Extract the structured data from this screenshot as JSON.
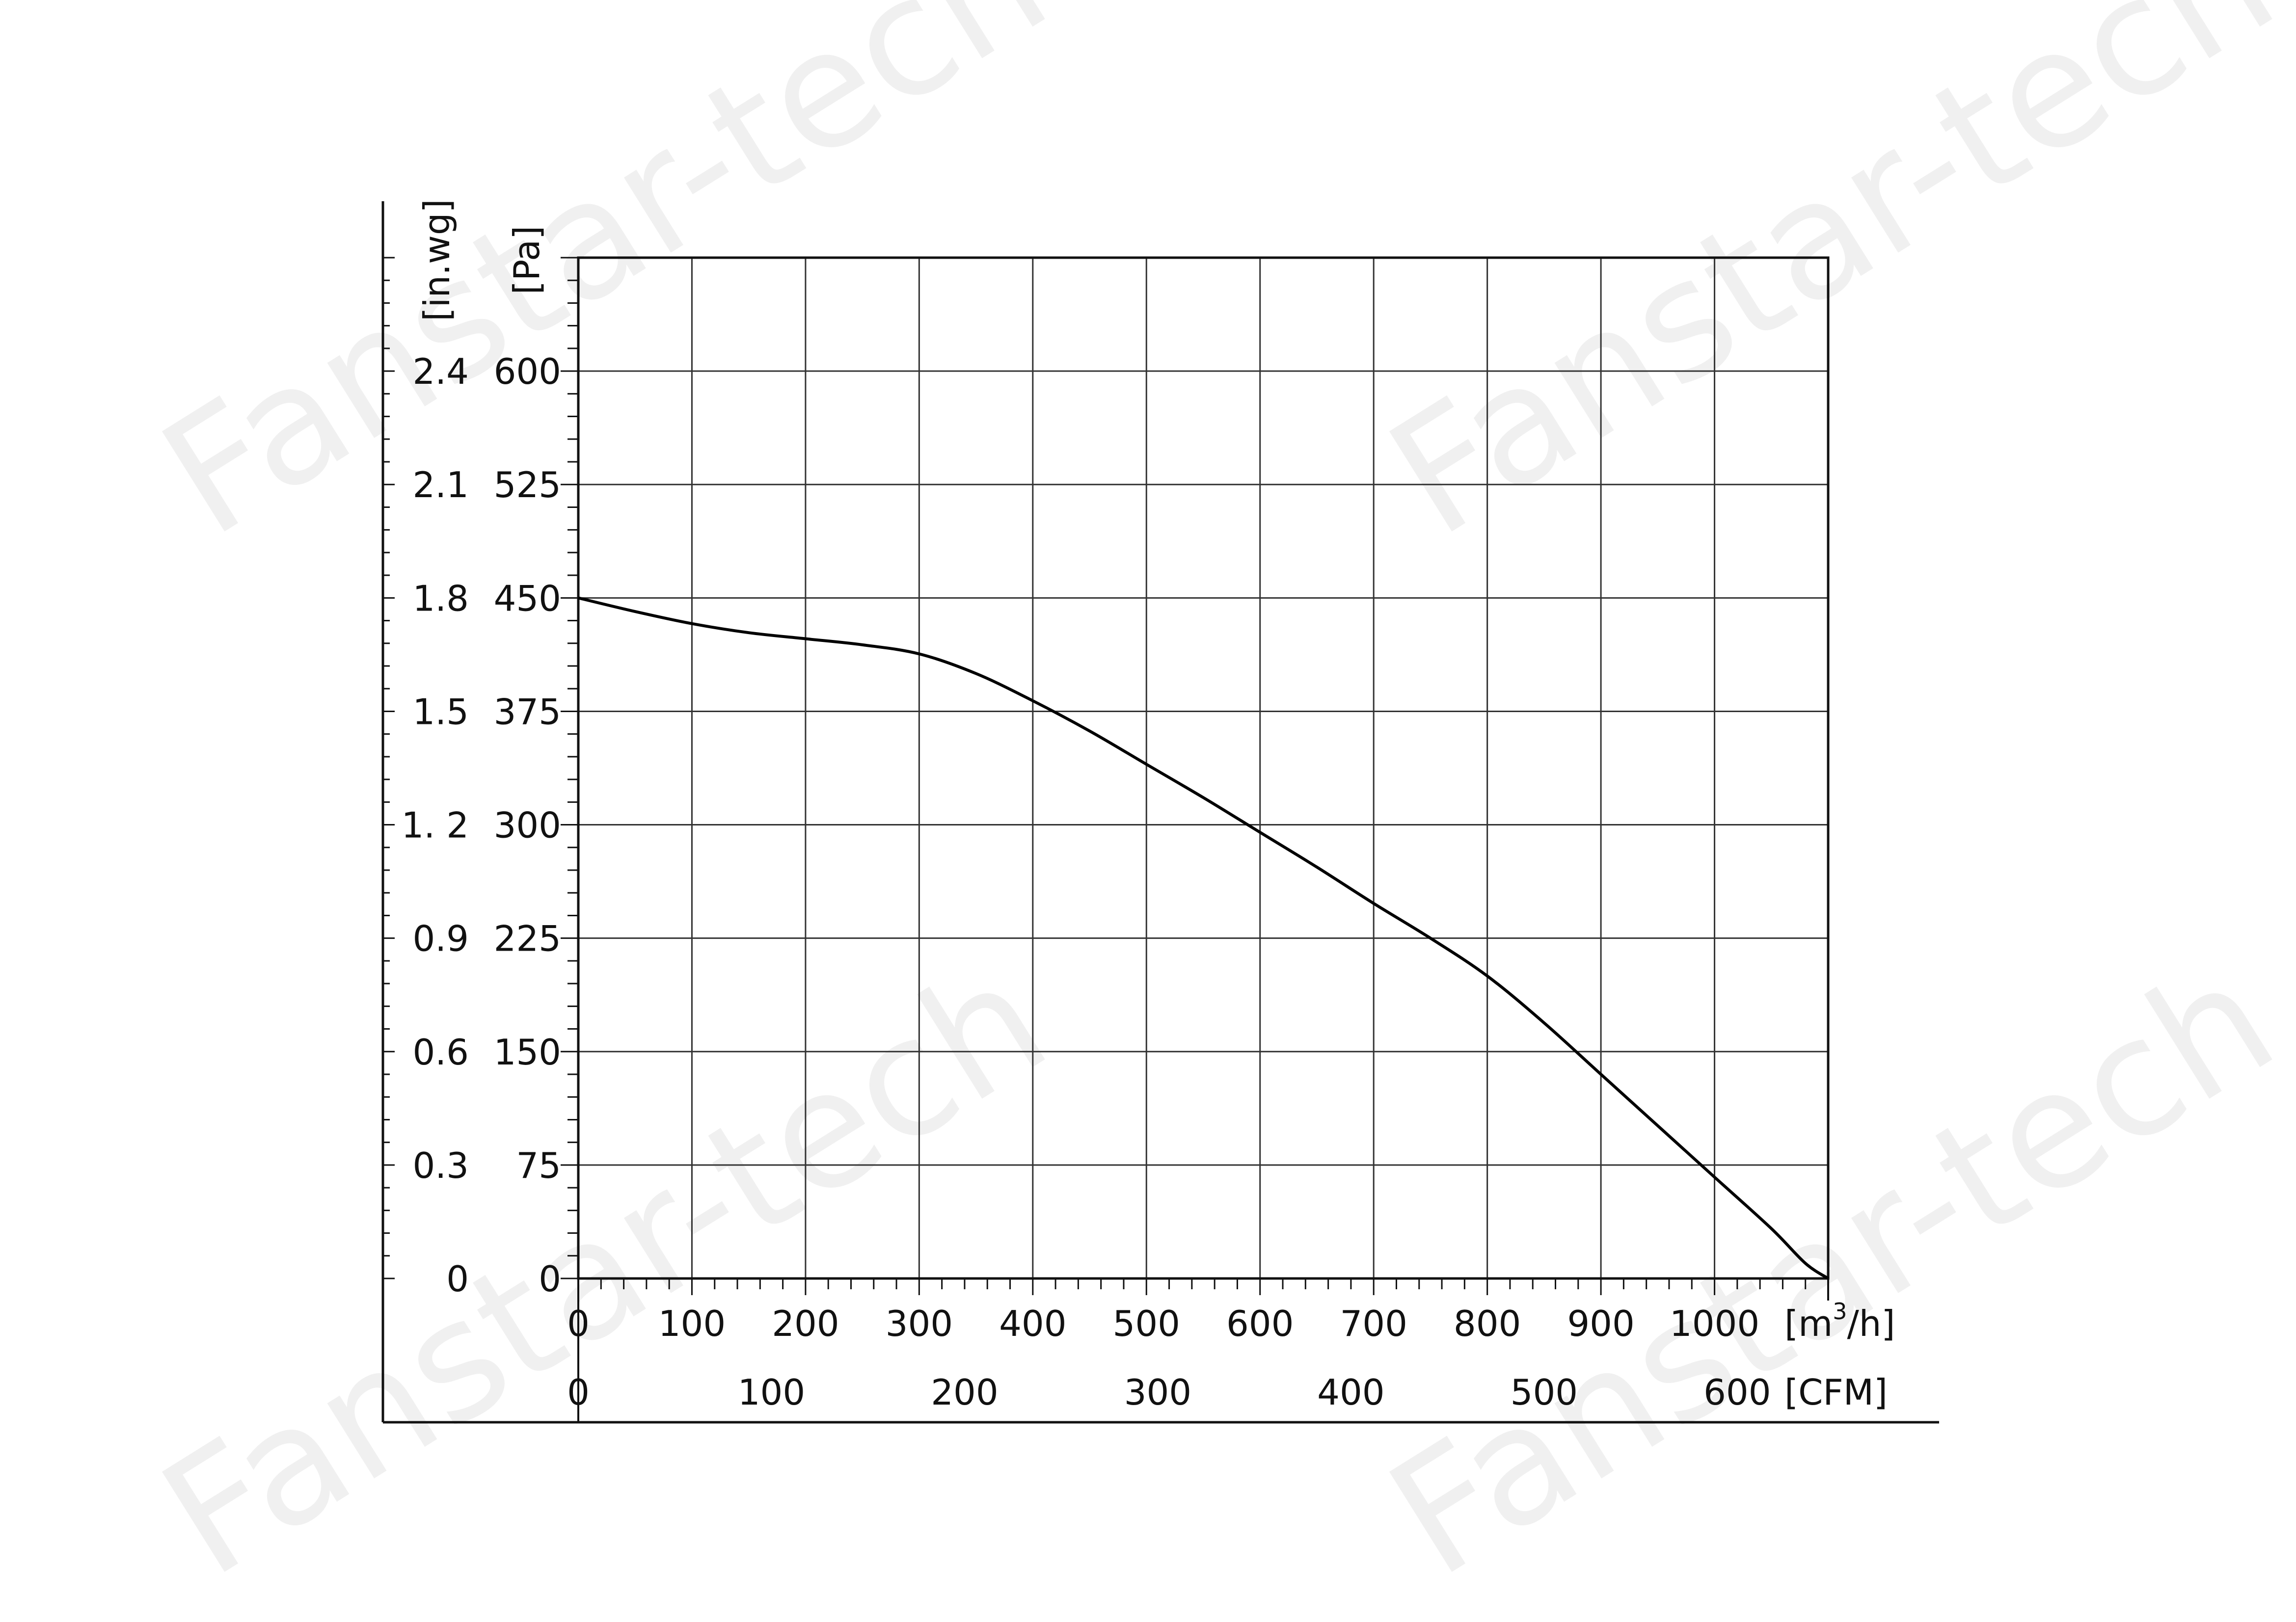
{
  "watermark": "Fanstar-tech",
  "chart_data": {
    "type": "line",
    "title": "",
    "xlabel": "[m³/h]",
    "xlabel_base": "[m",
    "xlabel_sup": "3",
    "xlabel_tail": "/h]",
    "x2label": "[CFM]",
    "ylabel": "[Pa]",
    "y2label": "[in.wg]",
    "xlim": [
      0,
      1100
    ],
    "ylim": [
      0,
      675
    ],
    "x2lim": [
      0,
      647.06
    ],
    "grid": true,
    "x_ticks": [
      "0",
      "100",
      "200",
      "300",
      "400",
      "500",
      "600",
      "700",
      "800",
      "900",
      "1000"
    ],
    "x2_ticks": [
      "0",
      "100",
      "200",
      "300",
      "400",
      "500",
      "600"
    ],
    "y_ticks": [
      "0",
      "75",
      "150",
      "225",
      "300",
      "375",
      "450",
      "525",
      "600"
    ],
    "y2_ticks": [
      "0",
      "0.3",
      "0.6",
      "0.9",
      "1. 2",
      "1.5",
      "1.8",
      "2.1",
      "2.4"
    ],
    "series": [
      {
        "name": "",
        "color": "#000000",
        "x": [
          0,
          50,
          100,
          150,
          200,
          250,
          300,
          350,
          400,
          450,
          500,
          550,
          600,
          650,
          700,
          750,
          800,
          850,
          900,
          950,
          1000,
          1050,
          1080,
          1100
        ],
        "y": [
          450,
          441,
          433,
          427,
          423,
          419,
          413,
          400,
          382,
          362,
          340,
          318,
          295,
          272,
          248,
          225,
          200,
          169,
          135,
          101,
          67,
          33,
          10,
          0
        ]
      }
    ]
  }
}
